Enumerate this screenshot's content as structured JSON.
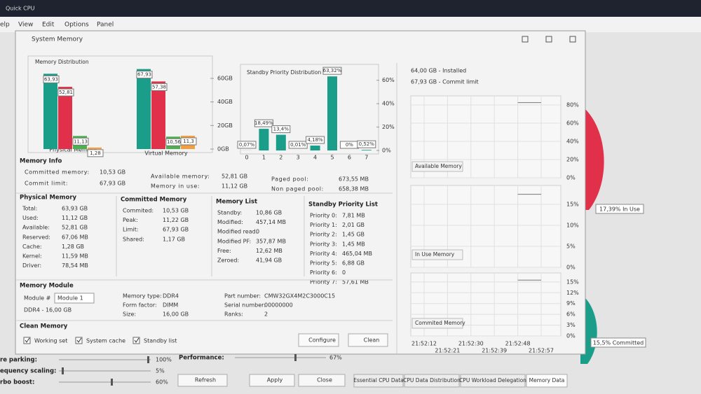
{
  "app": {
    "title": "Quick CPU",
    "menu": [
      "elp",
      "View",
      "Edit",
      "Options",
      "Panel"
    ]
  },
  "window": {
    "title": "System Memory"
  },
  "memory_distribution": {
    "type": "bar",
    "title": "Memory Distribution",
    "categories": [
      "Physical Memory",
      "Virtual Memory"
    ],
    "series": [
      {
        "color": "#1a9e8a",
        "values": [
          63.93,
          67.93
        ],
        "value_labels": [
          "63,93",
          "67,93"
        ]
      },
      {
        "color": "#e0304a",
        "values": [
          52.81,
          57.38
        ],
        "value_labels": [
          "52,81",
          "57,38"
        ]
      },
      {
        "color": "#4caf50",
        "values": [
          11.13,
          10.56
        ],
        "value_labels": [
          "11,13",
          "10,56"
        ]
      },
      {
        "color": "#f0a040",
        "values": [
          1.28,
          11.3
        ],
        "value_labels": [
          "1,28",
          "11,3"
        ]
      }
    ],
    "ylim": [
      0,
      79
    ],
    "yticks": [
      {
        "value": 0,
        "label": "0GB"
      },
      {
        "value": 20,
        "label": "20GB"
      },
      {
        "value": 40,
        "label": "40GB"
      },
      {
        "value": 60,
        "label": "60GB"
      }
    ]
  },
  "standby_distribution": {
    "type": "bar",
    "title": "Standby Priority Distribution",
    "color": "#1a9e8a",
    "categories": [
      "0",
      "1",
      "2",
      "3",
      "4",
      "5",
      "6",
      "7"
    ],
    "values": [
      0.07,
      18.49,
      13.4,
      0.01,
      4.18,
      63.32,
      0,
      0.52
    ],
    "value_labels": [
      "0,07%",
      "18,49%",
      "13,4%",
      "0,01%",
      "4,18%",
      "63,32%",
      "0%",
      "0,52%"
    ],
    "ylim": [
      0,
      73
    ],
    "yticks": [
      {
        "value": 0,
        "label": "0%"
      },
      {
        "value": 20,
        "label": "20%"
      },
      {
        "value": 40,
        "label": "40%"
      },
      {
        "value": 60,
        "label": "60%"
      }
    ]
  },
  "memory_info": {
    "title": "Memory Info",
    "rows": [
      {
        "label": "Committed memory:",
        "value": "10,53 GB"
      },
      {
        "label": "Commit limit:",
        "value": "67,93 GB"
      },
      {
        "label": "Available memory:",
        "value": "52,81 GB"
      },
      {
        "label": "Memory in use:",
        "value": "11,12 GB"
      },
      {
        "label": "Paged pool:",
        "value": "673,55 MB"
      },
      {
        "label": "Non paged pool:",
        "value": "658,38 MB"
      }
    ]
  },
  "sections": [
    {
      "title": "Physical Memory",
      "rows": [
        {
          "label": "Total:",
          "value": "63,93 GB"
        },
        {
          "label": "Used:",
          "value": "11,12 GB"
        },
        {
          "label": "Available:",
          "value": "52,81 GB"
        },
        {
          "label": "Reserved:",
          "value": "67,06 MB"
        },
        {
          "label": "Cache:",
          "value": "1,28 GB"
        },
        {
          "label": "Kernel:",
          "value": "11,59 MB"
        },
        {
          "label": "Driver:",
          "value": "78,54 MB"
        }
      ]
    },
    {
      "title": "Committed Memory",
      "rows": [
        {
          "label": "Commited:",
          "value": "10,53 GB"
        },
        {
          "label": "Peak:",
          "value": "11,22 GB"
        },
        {
          "label": "Limit:",
          "value": "67,93 GB"
        },
        {
          "label": "Shared:",
          "value": "1,17 GB"
        }
      ]
    },
    {
      "title": "Memory List",
      "rows": [
        {
          "label": "Standby:",
          "value": "10,86 GB"
        },
        {
          "label": "Modified:",
          "value": "457,14 MB"
        },
        {
          "label": "Modified read:",
          "value": "0"
        },
        {
          "label": "Modified PF:",
          "value": "357,87 MB"
        },
        {
          "label": "Free:",
          "value": "12,62 MB"
        },
        {
          "label": "Zeroed:",
          "value": "41,94 GB"
        }
      ]
    },
    {
      "title": "Standby Priority List",
      "rows": [
        {
          "label": "Priority 0:",
          "value": "7,81 MB"
        },
        {
          "label": "Priority 1:",
          "value": "2,01 GB"
        },
        {
          "label": "Priority 2:",
          "value": "1,45 GB"
        },
        {
          "label": "Priority 3:",
          "value": "1,45 MB"
        },
        {
          "label": "Priority 4:",
          "value": "465,04 MB"
        },
        {
          "label": "Priority 5:",
          "value": "6,88 GB"
        },
        {
          "label": "Priority 6:",
          "value": "0"
        },
        {
          "label": "Priority 7:",
          "value": "57,61 MB"
        }
      ]
    }
  ],
  "memory_module": {
    "title": "Memory Module",
    "module_label": "Module #",
    "module_select": "Module 1",
    "summary": "DDR4 - 16,00 GB",
    "rows": [
      {
        "label": "Memory type:",
        "value": "DDR4"
      },
      {
        "label": "Form factor:",
        "value": "DIMM"
      },
      {
        "label": "Size:",
        "value": "16,00 GB"
      },
      {
        "label": "Part number:",
        "value": "CMW32GX4M2C3000C15"
      },
      {
        "label": "Serial number:",
        "value": "00000000"
      },
      {
        "label": "Ranks:",
        "value": "2"
      }
    ]
  },
  "clean_memory": {
    "title": "Clean Memory",
    "options": [
      "Working set",
      "System cache",
      "Standby list"
    ],
    "buttons": [
      "Configure",
      "Clean"
    ]
  },
  "monitor": {
    "installed": "64,00 GB - Installed",
    "commit_limit": "67,93 GB - Commit limit",
    "x": [
      "21:52:12",
      "21:52:21",
      "21:52:30",
      "21:52:39",
      "21:52:48",
      "21:52:57"
    ],
    "charts": [
      {
        "label": "Available Memory",
        "ylim": [
          0,
          90
        ],
        "yticks": [
          {
            "value": 0,
            "label": "0%"
          },
          {
            "value": 20,
            "label": "20%"
          },
          {
            "value": 40,
            "label": "40%"
          },
          {
            "value": 60,
            "label": "60%"
          },
          {
            "value": 80,
            "label": "80%"
          }
        ],
        "values": [
          null,
          null,
          null,
          null,
          82.61,
          82.61
        ]
      },
      {
        "label": "In Use Memory",
        "ylim": [
          0,
          19.5
        ],
        "yticks": [
          {
            "value": 0,
            "label": "0%"
          },
          {
            "value": 5,
            "label": "5%"
          },
          {
            "value": 10,
            "label": "10%"
          },
          {
            "value": 15,
            "label": "15%"
          }
        ],
        "values": [
          null,
          null,
          null,
          null,
          17.39,
          17.39
        ]
      },
      {
        "label": "Commited Memory",
        "ylim": [
          0,
          17.5
        ],
        "yticks": [
          {
            "value": 0,
            "label": "0%"
          },
          {
            "value": 3,
            "label": "3%"
          },
          {
            "value": 6,
            "label": "6%"
          },
          {
            "value": 9,
            "label": "9%"
          },
          {
            "value": 12,
            "label": "12%"
          },
          {
            "value": 15,
            "label": "15%"
          }
        ],
        "values": [
          null,
          null,
          null,
          null,
          15.5,
          15.5
        ]
      }
    ]
  },
  "background": {
    "in_use_label": "17,39% In Use",
    "committed_label": "15,5% Committed",
    "settings": [
      {
        "label": "re parking:",
        "value": "100%"
      },
      {
        "label": "equency scaling:",
        "value": "5%"
      },
      {
        "label": "rbo boost:",
        "value": "60%"
      }
    ],
    "performance_label": "Performance:",
    "performance_value": "67%",
    "buttons": [
      "Refresh",
      "Apply",
      "Close"
    ],
    "tabs": [
      "Essential CPU Data",
      "CPU Data Distribution",
      "CPU Workload Delegation",
      "Memory Data"
    ]
  }
}
